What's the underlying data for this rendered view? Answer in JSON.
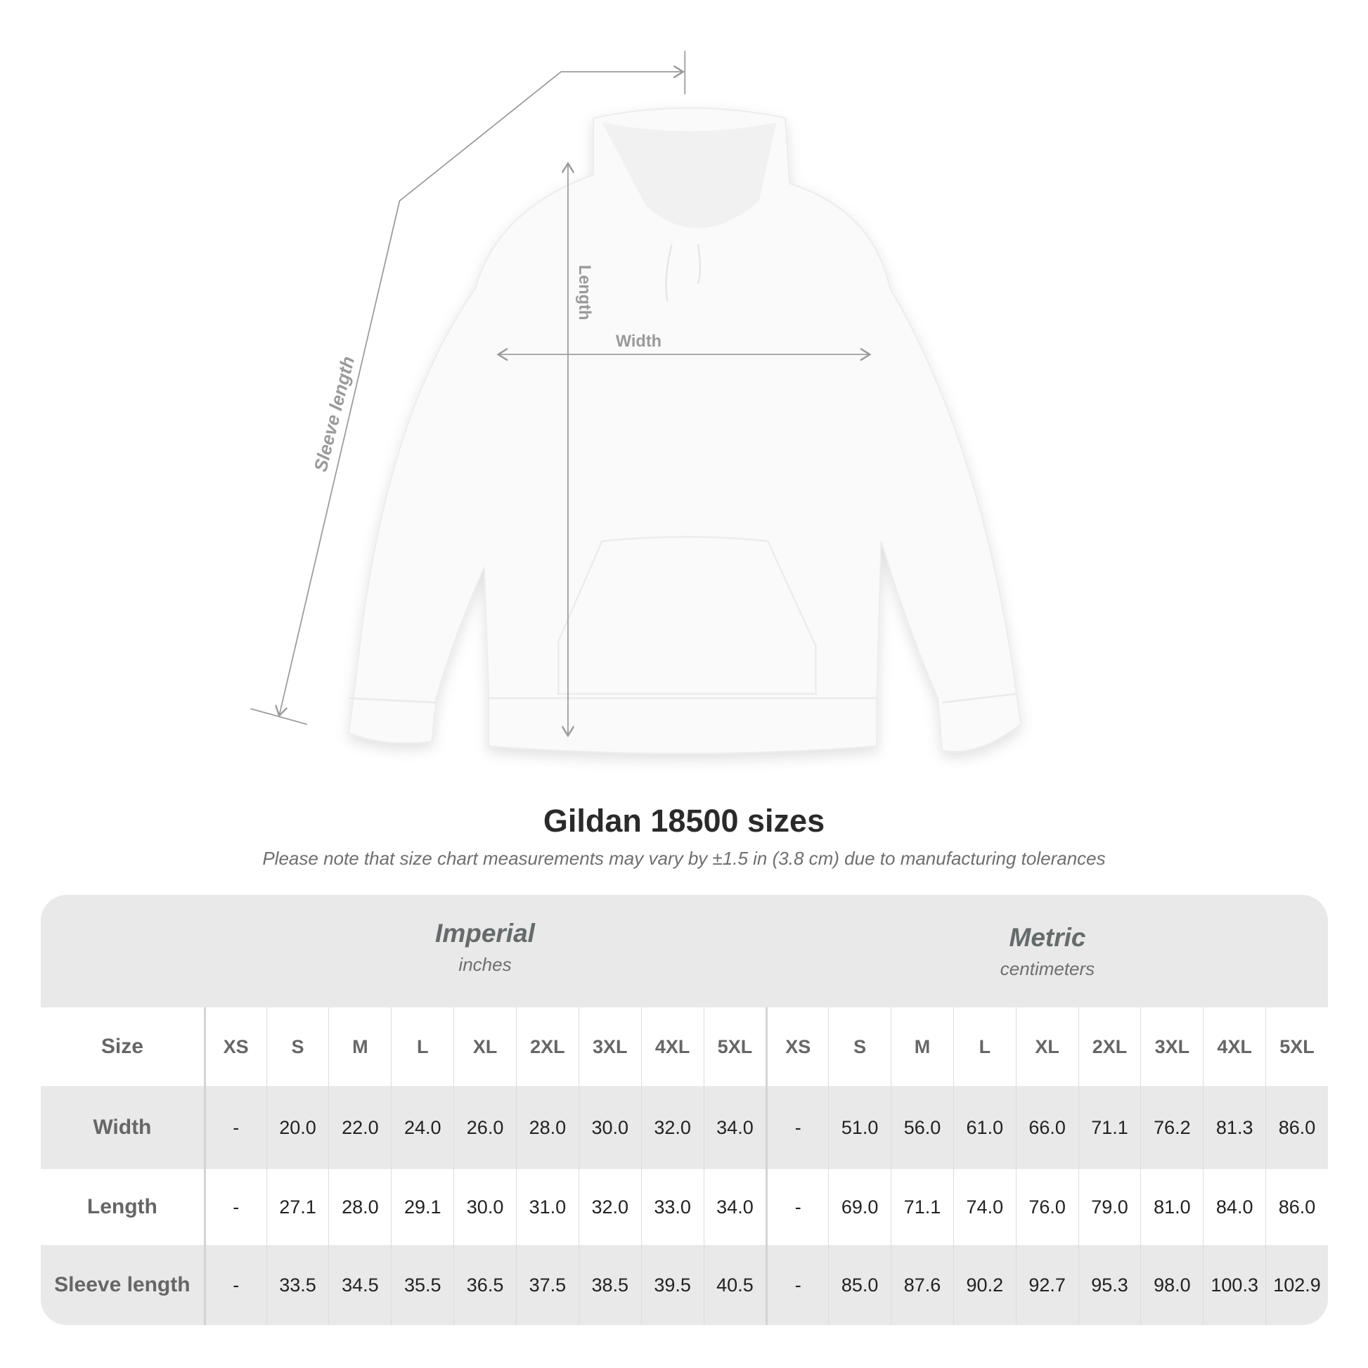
{
  "diagram": {
    "labels": {
      "length": "Length",
      "width": "Width",
      "sleeve": "Sleeve length"
    }
  },
  "title": "Gildan 18500 sizes",
  "subtitle": "Please note that size chart measurements may vary by ±1.5 in (3.8 cm) due to manufacturing tolerances",
  "table": {
    "systems": [
      {
        "name": "Imperial",
        "unit": "inches"
      },
      {
        "name": "Metric",
        "unit": "centimeters"
      }
    ],
    "size_label": "Size",
    "sizes": [
      "XS",
      "S",
      "M",
      "L",
      "XL",
      "2XL",
      "3XL",
      "4XL",
      "5XL",
      "XS",
      "S",
      "M",
      "L",
      "XL",
      "2XL",
      "3XL",
      "4XL",
      "5XL"
    ],
    "rows": [
      {
        "label": "Width",
        "values": [
          "-",
          "20.0",
          "22.0",
          "24.0",
          "26.0",
          "28.0",
          "30.0",
          "32.0",
          "34.0",
          "-",
          "51.0",
          "56.0",
          "61.0",
          "66.0",
          "71.1",
          "76.2",
          "81.3",
          "86.0"
        ]
      },
      {
        "label": "Length",
        "values": [
          "-",
          "27.1",
          "28.0",
          "29.1",
          "30.0",
          "31.0",
          "32.0",
          "33.0",
          "34.0",
          "-",
          "69.0",
          "71.1",
          "74.0",
          "76.0",
          "79.0",
          "81.0",
          "84.0",
          "86.0"
        ]
      },
      {
        "label": "Sleeve length",
        "values": [
          "-",
          "33.5",
          "34.5",
          "35.5",
          "36.5",
          "37.5",
          "38.5",
          "39.5",
          "40.5",
          "-",
          "85.0",
          "87.6",
          "90.2",
          "92.7",
          "95.3",
          "98.0",
          "100.3",
          "102.9"
        ]
      }
    ]
  },
  "colors": {
    "band": "#e9e9e9",
    "label": "#666666",
    "text": "#222222",
    "measure_line": "#9a9a9a"
  }
}
